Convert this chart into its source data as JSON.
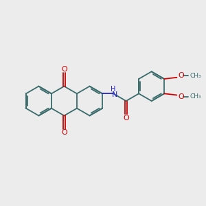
{
  "background_color": "#ececec",
  "bond_color": "#3a6b6b",
  "oxygen_color": "#cc0000",
  "nitrogen_color": "#2222cc",
  "figsize": [
    3.0,
    3.0
  ],
  "dpi": 100,
  "xlim": [
    0,
    10
  ],
  "ylim": [
    0,
    10
  ]
}
